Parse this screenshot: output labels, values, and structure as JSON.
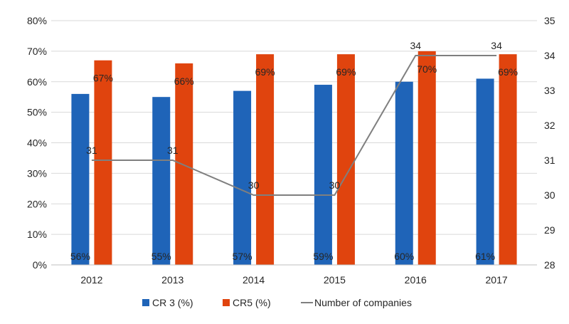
{
  "chart_data": {
    "type": "bar",
    "categories": [
      "2012",
      "2013",
      "2014",
      "2015",
      "2016",
      "2017"
    ],
    "series": [
      {
        "name": "CR 3 (%)",
        "kind": "bar",
        "axis": "left",
        "color": "#1f64b8",
        "values": [
          56,
          55,
          57,
          59,
          60,
          61
        ],
        "labels": [
          "56%",
          "55%",
          "57%",
          "59%",
          "60%",
          "61%"
        ]
      },
      {
        "name": "CR5 (%)",
        "kind": "bar",
        "axis": "left",
        "color": "#e0440e",
        "values": [
          67,
          66,
          69,
          69,
          70,
          69
        ],
        "labels": [
          "67%",
          "66%",
          "69%",
          "69%",
          "70%",
          "69%"
        ]
      },
      {
        "name": "Number of companies",
        "kind": "line",
        "axis": "right",
        "color": "#7f7f7f",
        "values": [
          31,
          31,
          30,
          30,
          34,
          34
        ],
        "labels": [
          "31",
          "31",
          "30",
          "30",
          "34",
          "34"
        ]
      }
    ],
    "y_left": {
      "range": [
        0,
        80
      ],
      "ticks": [
        "0%",
        "10%",
        "20%",
        "30%",
        "40%",
        "50%",
        "60%",
        "70%",
        "80%"
      ]
    },
    "y_right": {
      "range": [
        28,
        35
      ],
      "ticks": [
        "28",
        "29",
        "30",
        "31",
        "32",
        "33",
        "34",
        "35"
      ]
    },
    "grid": true,
    "legend": "bottom",
    "title": "",
    "xlabel": "",
    "ylabel": ""
  }
}
